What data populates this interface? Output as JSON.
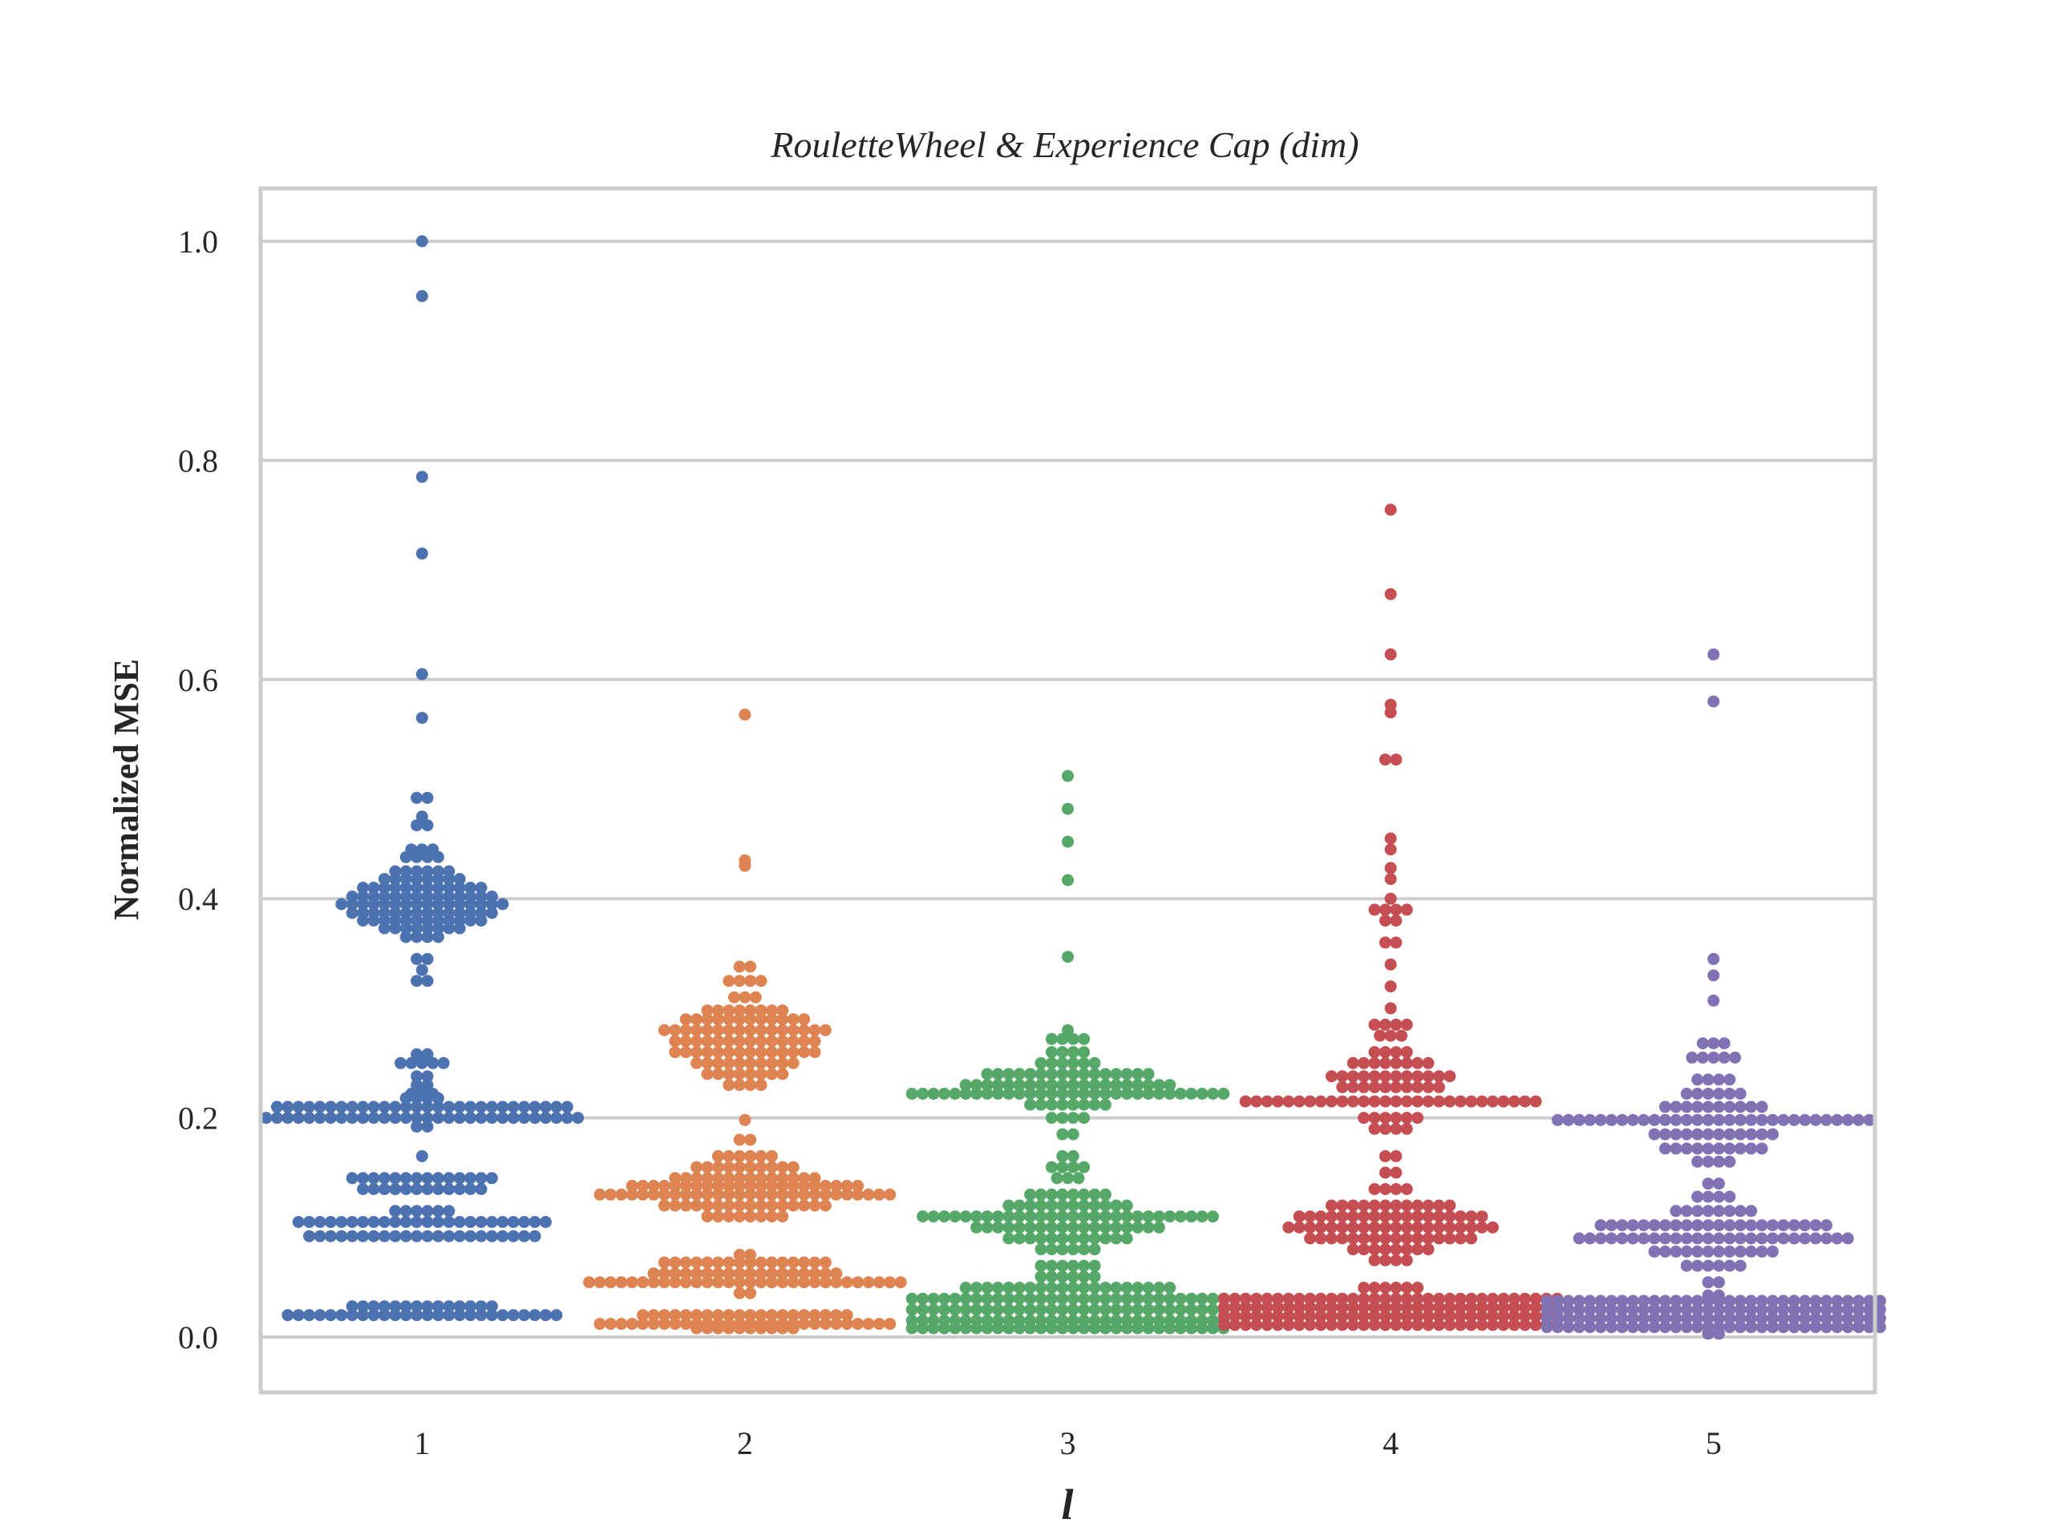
{
  "chart_data": {
    "type": "scatter",
    "subtype": "swarm",
    "title": "RouletteWheel & Experience Cap (dim)",
    "xlabel": "l",
    "ylabel": "Normalized MSE",
    "ylim": [
      -0.047,
      1.05
    ],
    "yticks": [
      "0.0",
      "0.2",
      "0.4",
      "0.6",
      "0.8",
      "1.0"
    ],
    "grid": "horizontal",
    "legend": "none",
    "categories": [
      "1",
      "2",
      "3",
      "4",
      "5"
    ],
    "colors": [
      "#4c72b0",
      "#dd8452",
      "#55a868",
      "#c44e52",
      "#8172b3"
    ],
    "series": [
      {
        "category": "1",
        "clusters": [
          {
            "y": 1.0,
            "n": 1
          },
          {
            "y": 0.95,
            "n": 1
          },
          {
            "y": 0.785,
            "n": 1
          },
          {
            "y": 0.715,
            "n": 1
          },
          {
            "y": 0.605,
            "n": 1
          },
          {
            "y": 0.565,
            "n": 1
          },
          {
            "y": 0.492,
            "n": 2
          },
          {
            "y": 0.475,
            "n": 1
          },
          {
            "y": 0.467,
            "n": 2
          },
          {
            "y": 0.445,
            "n": 3
          },
          {
            "y": 0.438,
            "n": 4
          },
          {
            "y": 0.425,
            "n": 6
          },
          {
            "y": 0.418,
            "n": 8
          },
          {
            "y": 0.41,
            "n": 12
          },
          {
            "y": 0.402,
            "n": 14
          },
          {
            "y": 0.395,
            "n": 16
          },
          {
            "y": 0.387,
            "n": 14
          },
          {
            "y": 0.38,
            "n": 12
          },
          {
            "y": 0.373,
            "n": 8
          },
          {
            "y": 0.365,
            "n": 4
          },
          {
            "y": 0.345,
            "n": 2
          },
          {
            "y": 0.335,
            "n": 1
          },
          {
            "y": 0.325,
            "n": 2
          },
          {
            "y": 0.258,
            "n": 2
          },
          {
            "y": 0.25,
            "n": 5
          },
          {
            "y": 0.238,
            "n": 2
          },
          {
            "y": 0.23,
            "n": 2
          },
          {
            "y": 0.222,
            "n": 3
          },
          {
            "y": 0.218,
            "n": 4
          },
          {
            "y": 0.21,
            "n": 28
          },
          {
            "y": 0.2,
            "n": 30
          },
          {
            "y": 0.192,
            "n": 2
          },
          {
            "y": 0.165,
            "n": 1
          },
          {
            "y": 0.145,
            "n": 14
          },
          {
            "y": 0.135,
            "n": 12
          },
          {
            "y": 0.115,
            "n": 6
          },
          {
            "y": 0.105,
            "n": 24
          },
          {
            "y": 0.092,
            "n": 22
          },
          {
            "y": 0.028,
            "n": 14
          },
          {
            "y": 0.02,
            "n": 26
          }
        ]
      },
      {
        "category": "2",
        "clusters": [
          {
            "y": 0.568,
            "n": 1
          },
          {
            "y": 0.435,
            "n": 1
          },
          {
            "y": 0.43,
            "n": 1
          },
          {
            "y": 0.338,
            "n": 2
          },
          {
            "y": 0.325,
            "n": 4
          },
          {
            "y": 0.31,
            "n": 3
          },
          {
            "y": 0.298,
            "n": 8
          },
          {
            "y": 0.29,
            "n": 12
          },
          {
            "y": 0.28,
            "n": 16
          },
          {
            "y": 0.27,
            "n": 14
          },
          {
            "y": 0.26,
            "n": 14
          },
          {
            "y": 0.25,
            "n": 10
          },
          {
            "y": 0.24,
            "n": 8
          },
          {
            "y": 0.23,
            "n": 4
          },
          {
            "y": 0.198,
            "n": 1
          },
          {
            "y": 0.18,
            "n": 2
          },
          {
            "y": 0.165,
            "n": 6
          },
          {
            "y": 0.155,
            "n": 10
          },
          {
            "y": 0.145,
            "n": 14
          },
          {
            "y": 0.138,
            "n": 22
          },
          {
            "y": 0.13,
            "n": 28
          },
          {
            "y": 0.12,
            "n": 16
          },
          {
            "y": 0.11,
            "n": 8
          },
          {
            "y": 0.075,
            "n": 2
          },
          {
            "y": 0.068,
            "n": 16
          },
          {
            "y": 0.058,
            "n": 18
          },
          {
            "y": 0.05,
            "n": 30
          },
          {
            "y": 0.04,
            "n": 2
          },
          {
            "y": 0.02,
            "n": 20
          },
          {
            "y": 0.012,
            "n": 28
          },
          {
            "y": 0.008,
            "n": 10
          }
        ]
      },
      {
        "category": "3",
        "clusters": [
          {
            "y": 0.512,
            "n": 1
          },
          {
            "y": 0.482,
            "n": 1
          },
          {
            "y": 0.452,
            "n": 1
          },
          {
            "y": 0.417,
            "n": 1
          },
          {
            "y": 0.347,
            "n": 1
          },
          {
            "y": 0.28,
            "n": 1
          },
          {
            "y": 0.272,
            "n": 4
          },
          {
            "y": 0.26,
            "n": 4
          },
          {
            "y": 0.25,
            "n": 6
          },
          {
            "y": 0.24,
            "n": 16
          },
          {
            "y": 0.23,
            "n": 20
          },
          {
            "y": 0.222,
            "n": 30
          },
          {
            "y": 0.212,
            "n": 8
          },
          {
            "y": 0.2,
            "n": 4
          },
          {
            "y": 0.185,
            "n": 2
          },
          {
            "y": 0.165,
            "n": 2
          },
          {
            "y": 0.155,
            "n": 4
          },
          {
            "y": 0.145,
            "n": 3
          },
          {
            "y": 0.13,
            "n": 8
          },
          {
            "y": 0.12,
            "n": 12
          },
          {
            "y": 0.11,
            "n": 28
          },
          {
            "y": 0.1,
            "n": 18
          },
          {
            "y": 0.09,
            "n": 12
          },
          {
            "y": 0.08,
            "n": 6
          },
          {
            "y": 0.065,
            "n": 6
          },
          {
            "y": 0.055,
            "n": 6
          },
          {
            "y": 0.045,
            "n": 20
          },
          {
            "y": 0.035,
            "n": 30
          },
          {
            "y": 0.025,
            "n": 30
          },
          {
            "y": 0.015,
            "n": 30
          },
          {
            "y": 0.008,
            "n": 30
          }
        ]
      },
      {
        "category": "4",
        "clusters": [
          {
            "y": 0.755,
            "n": 1
          },
          {
            "y": 0.678,
            "n": 1
          },
          {
            "y": 0.623,
            "n": 1
          },
          {
            "y": 0.577,
            "n": 1
          },
          {
            "y": 0.57,
            "n": 1
          },
          {
            "y": 0.527,
            "n": 2
          },
          {
            "y": 0.455,
            "n": 1
          },
          {
            "y": 0.445,
            "n": 1
          },
          {
            "y": 0.428,
            "n": 1
          },
          {
            "y": 0.418,
            "n": 1
          },
          {
            "y": 0.4,
            "n": 1
          },
          {
            "y": 0.39,
            "n": 4
          },
          {
            "y": 0.38,
            "n": 2
          },
          {
            "y": 0.36,
            "n": 2
          },
          {
            "y": 0.34,
            "n": 1
          },
          {
            "y": 0.32,
            "n": 1
          },
          {
            "y": 0.3,
            "n": 1
          },
          {
            "y": 0.285,
            "n": 4
          },
          {
            "y": 0.275,
            "n": 3
          },
          {
            "y": 0.26,
            "n": 4
          },
          {
            "y": 0.25,
            "n": 8
          },
          {
            "y": 0.238,
            "n": 12
          },
          {
            "y": 0.228,
            "n": 10
          },
          {
            "y": 0.215,
            "n": 28
          },
          {
            "y": 0.2,
            "n": 6
          },
          {
            "y": 0.19,
            "n": 4
          },
          {
            "y": 0.165,
            "n": 2
          },
          {
            "y": 0.15,
            "n": 2
          },
          {
            "y": 0.135,
            "n": 4
          },
          {
            "y": 0.12,
            "n": 12
          },
          {
            "y": 0.11,
            "n": 18
          },
          {
            "y": 0.1,
            "n": 20
          },
          {
            "y": 0.09,
            "n": 16
          },
          {
            "y": 0.08,
            "n": 8
          },
          {
            "y": 0.07,
            "n": 4
          },
          {
            "y": 0.045,
            "n": 6
          },
          {
            "y": 0.035,
            "n": 32
          },
          {
            "y": 0.027,
            "n": 32
          },
          {
            "y": 0.019,
            "n": 32
          },
          {
            "y": 0.011,
            "n": 32
          }
        ]
      },
      {
        "category": "5",
        "clusters": [
          {
            "y": 0.623,
            "n": 1
          },
          {
            "y": 0.58,
            "n": 1
          },
          {
            "y": 0.345,
            "n": 1
          },
          {
            "y": 0.33,
            "n": 1
          },
          {
            "y": 0.307,
            "n": 1
          },
          {
            "y": 0.268,
            "n": 3
          },
          {
            "y": 0.255,
            "n": 5
          },
          {
            "y": 0.235,
            "n": 4
          },
          {
            "y": 0.222,
            "n": 6
          },
          {
            "y": 0.21,
            "n": 10
          },
          {
            "y": 0.198,
            "n": 30
          },
          {
            "y": 0.185,
            "n": 12
          },
          {
            "y": 0.172,
            "n": 10
          },
          {
            "y": 0.16,
            "n": 4
          },
          {
            "y": 0.14,
            "n": 2
          },
          {
            "y": 0.128,
            "n": 4
          },
          {
            "y": 0.115,
            "n": 8
          },
          {
            "y": 0.102,
            "n": 22
          },
          {
            "y": 0.09,
            "n": 26
          },
          {
            "y": 0.078,
            "n": 12
          },
          {
            "y": 0.065,
            "n": 6
          },
          {
            "y": 0.05,
            "n": 2
          },
          {
            "y": 0.038,
            "n": 2
          },
          {
            "y": 0.033,
            "n": 32
          },
          {
            "y": 0.025,
            "n": 32
          },
          {
            "y": 0.017,
            "n": 32
          },
          {
            "y": 0.009,
            "n": 32
          },
          {
            "y": 0.003,
            "n": 2
          }
        ]
      }
    ]
  }
}
